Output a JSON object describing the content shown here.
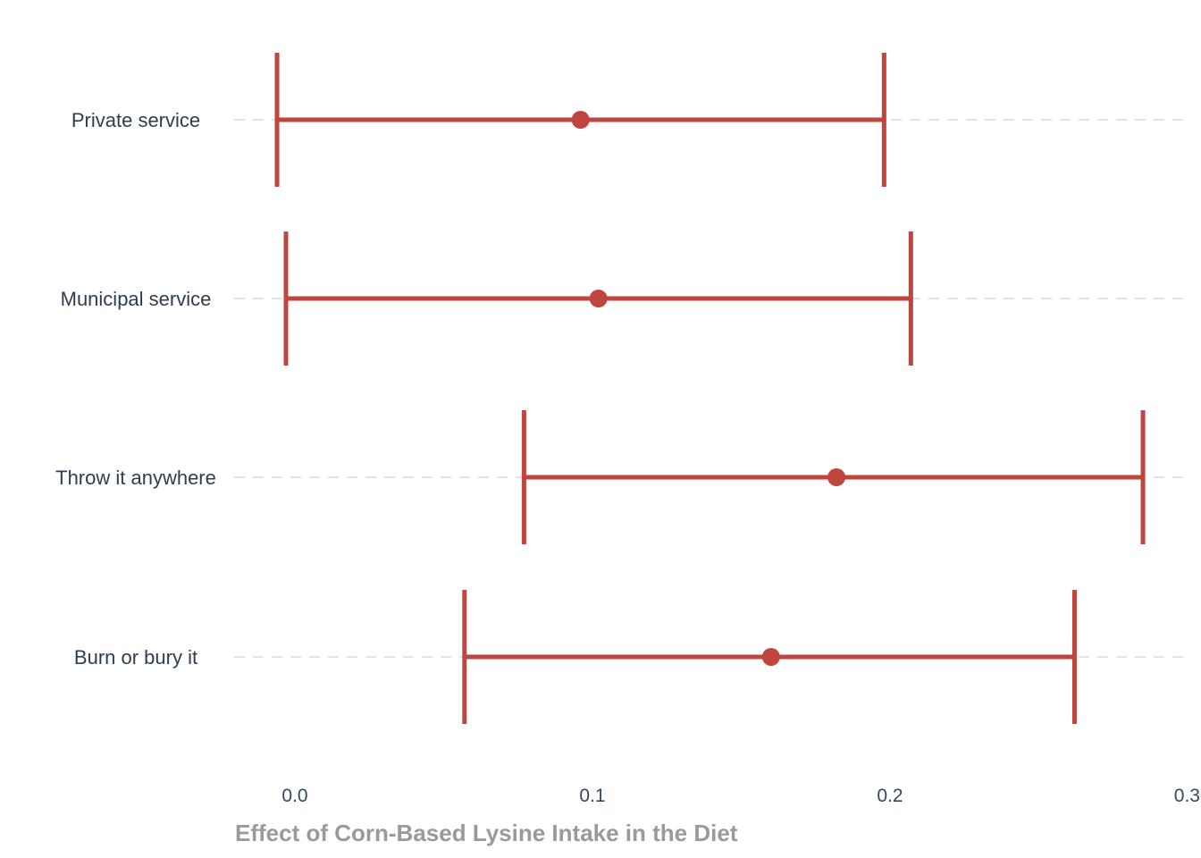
{
  "chart_data": {
    "type": "errorbar",
    "title": "",
    "xlabel": "Effect of Corn-Based Lysine Intake in the Diet",
    "ylabel": "",
    "xlim": [
      -0.021,
      0.3
    ],
    "x_ticks": [
      0.0,
      0.1,
      0.2,
      0.3
    ],
    "x_tick_labels": [
      "0.0",
      "0.1",
      "0.2",
      "0.3"
    ],
    "grid": "horizontal dashed",
    "legend": "none",
    "color": "#c0453f",
    "grid_color": "#e3e3e3",
    "categories": [
      "Private service",
      "Municipal service",
      "Throw it anywhere",
      "Burn or bury it"
    ],
    "estimates": [
      0.096,
      0.102,
      0.182,
      0.16
    ],
    "lower": [
      -0.006,
      -0.003,
      0.077,
      0.057
    ],
    "upper": [
      0.198,
      0.207,
      0.285,
      0.262
    ]
  }
}
